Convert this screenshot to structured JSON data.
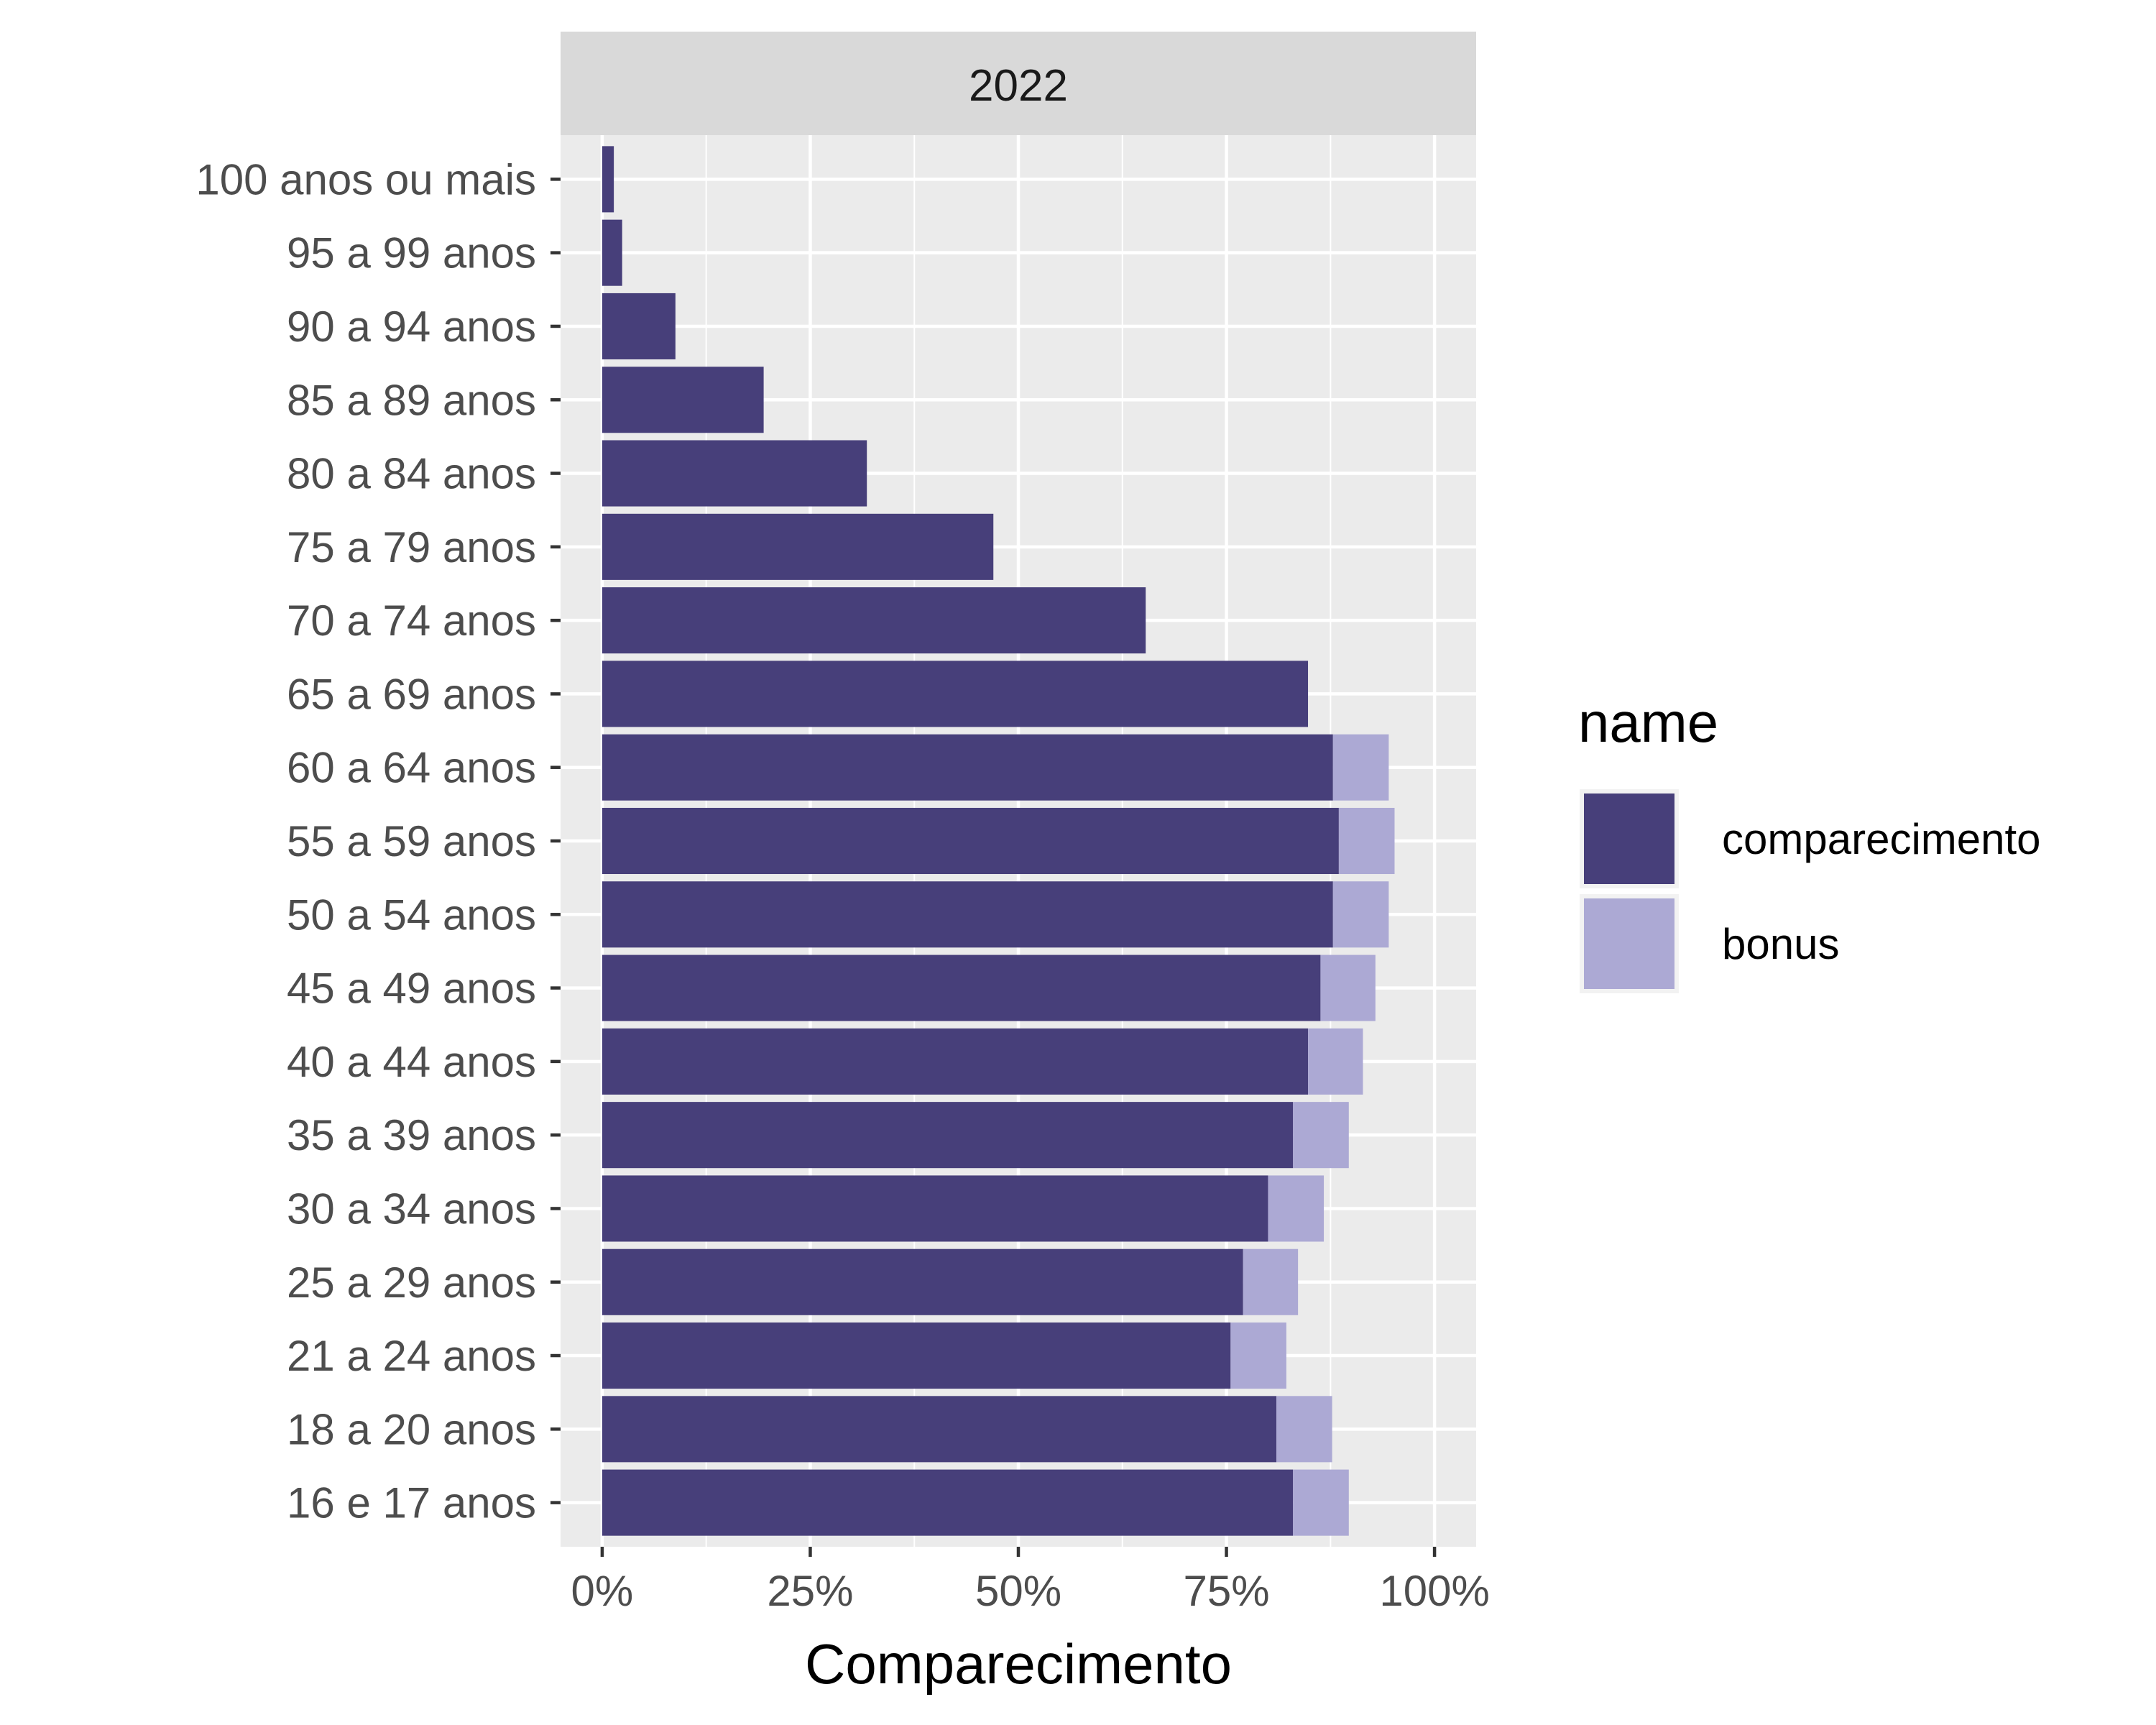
{
  "chart_data": {
    "type": "bar",
    "orientation": "horizontal",
    "stacked": true,
    "facet_label": "2022",
    "xlabel": "Comparecimento",
    "ylabel": "",
    "xlim": [
      -0.05,
      1.05
    ],
    "x_ticks": [
      0,
      0.25,
      0.5,
      0.75,
      1.0
    ],
    "x_tick_labels": [
      "0%",
      "25%",
      "50%",
      "75%",
      "100%"
    ],
    "grid": true,
    "legend_position": "right",
    "legend_title": "name",
    "categories": [
      "16 e 17 anos",
      "18 a 20 anos",
      "21 a 24 anos",
      "25 a 29 anos",
      "30 a 34 anos",
      "35 a 39 anos",
      "40 a 44 anos",
      "45 a 49 anos",
      "50 a 54 anos",
      "55 a 59 anos",
      "60 a 64 anos",
      "65 a 69 anos",
      "70 a 74 anos",
      "75 a 79 anos",
      "80 a 84 anos",
      "85 a 89 anos",
      "90 a 94 anos",
      "95 a 99 anos",
      "100 anos ou mais"
    ],
    "series": [
      {
        "name": "comparecimento",
        "color": "#473f7a",
        "values": [
          0.83,
          0.81,
          0.755,
          0.77,
          0.8,
          0.83,
          0.848,
          0.863,
          0.878,
          0.885,
          0.878,
          0.848,
          0.653,
          0.47,
          0.318,
          0.194,
          0.088,
          0.024,
          0.014
        ]
      },
      {
        "name": "bonus",
        "color": "#aca9d4",
        "values": [
          0.067,
          0.067,
          0.067,
          0.066,
          0.067,
          0.067,
          0.066,
          0.066,
          0.067,
          0.067,
          0.067,
          0.0,
          0.0,
          0.0,
          0.0,
          0.0,
          0.0,
          0.0,
          0.0
        ]
      }
    ]
  }
}
